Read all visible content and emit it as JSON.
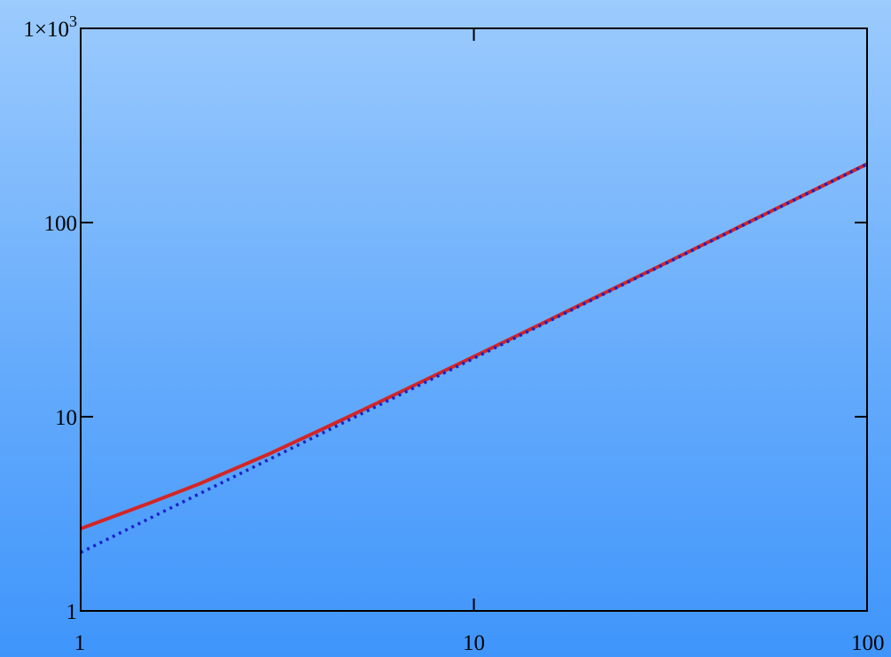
{
  "chart_data": {
    "type": "line",
    "xscale": "log",
    "yscale": "log",
    "xlim": [
      1,
      100
    ],
    "ylim": [
      1,
      1000
    ],
    "grid": false,
    "x_ticks": [
      {
        "value": 1,
        "label": "1"
      },
      {
        "value": 10,
        "label": "10"
      },
      {
        "value": 100,
        "label": "100"
      }
    ],
    "y_ticks": [
      {
        "value": 1,
        "label": "1"
      },
      {
        "value": 10,
        "label": "10"
      },
      {
        "value": 100,
        "label": "100"
      },
      {
        "value": 1000,
        "label": "1×10",
        "exponent": "3"
      }
    ],
    "series": [
      {
        "color": "#d42525",
        "style": "solid",
        "x": [
          1,
          1.5,
          2,
          3,
          4,
          5,
          7,
          10,
          15,
          20,
          30,
          50,
          70,
          100
        ],
        "y": [
          2.65,
          3.6,
          4.5,
          6.4,
          8.4,
          10.4,
          14.4,
          20.4,
          30.4,
          40.4,
          60.4,
          100.4,
          140.4,
          200.4
        ]
      },
      {
        "color": "#1a22c8",
        "style": "dotted",
        "x": [
          1,
          1.5,
          2,
          3,
          4,
          5,
          7,
          10,
          15,
          20,
          30,
          50,
          70,
          100
        ],
        "y": [
          2,
          3,
          4,
          6,
          8,
          10,
          14,
          20,
          30,
          40,
          60,
          100,
          140,
          200
        ]
      }
    ]
  }
}
